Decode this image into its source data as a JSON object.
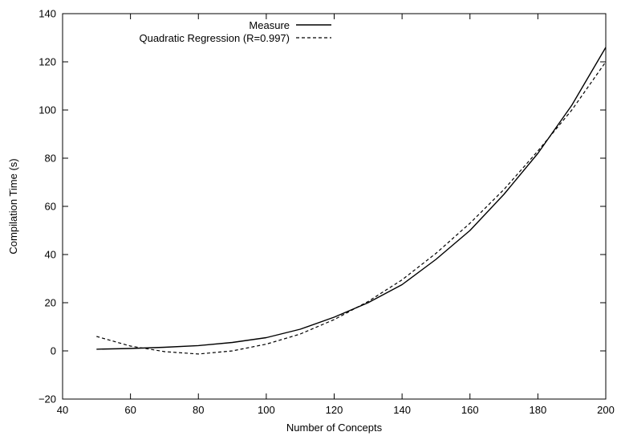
{
  "chart_data": {
    "type": "line",
    "xlabel": "Number of Concepts",
    "ylabel": "Compilation Time (s)",
    "xlim": [
      40,
      200
    ],
    "ylim": [
      -20,
      140
    ],
    "xticks": [
      40,
      60,
      80,
      100,
      120,
      140,
      160,
      180,
      200
    ],
    "yticks": [
      -20,
      0,
      20,
      40,
      60,
      80,
      100,
      120,
      140
    ],
    "xtick_labels": [
      "40",
      "60",
      "80",
      "100",
      "120",
      "140",
      "160",
      "180",
      "200"
    ],
    "ytick_labels": [
      "−20",
      "0",
      "20",
      "40",
      "60",
      "80",
      "100",
      "120",
      "140"
    ],
    "grid": false,
    "legend_position": "top-right",
    "series": [
      {
        "name": "Measure",
        "style": "solid",
        "color": "#000000",
        "x": [
          50,
          60,
          70,
          80,
          90,
          100,
          110,
          120,
          130,
          140,
          150,
          160,
          170,
          180,
          190,
          200
        ],
        "y": [
          0.7,
          1.0,
          1.5,
          2.2,
          3.5,
          5.5,
          9.0,
          14.0,
          20.0,
          27.5,
          38.0,
          50.0,
          65.0,
          82.0,
          102.0,
          126.0
        ]
      },
      {
        "name": "Quadratic Regression (R=0.997)",
        "style": "dashed",
        "color": "#000000",
        "x": [
          50,
          60,
          70,
          80,
          90,
          100,
          110,
          120,
          130,
          140,
          150,
          160,
          170,
          180,
          190,
          200
        ],
        "y": [
          6.0,
          2.0,
          -0.3,
          -1.3,
          0.0,
          2.8,
          7.0,
          13.0,
          20.5,
          29.5,
          40.5,
          53.0,
          67.0,
          83.0,
          100.0,
          120.0
        ]
      }
    ]
  }
}
